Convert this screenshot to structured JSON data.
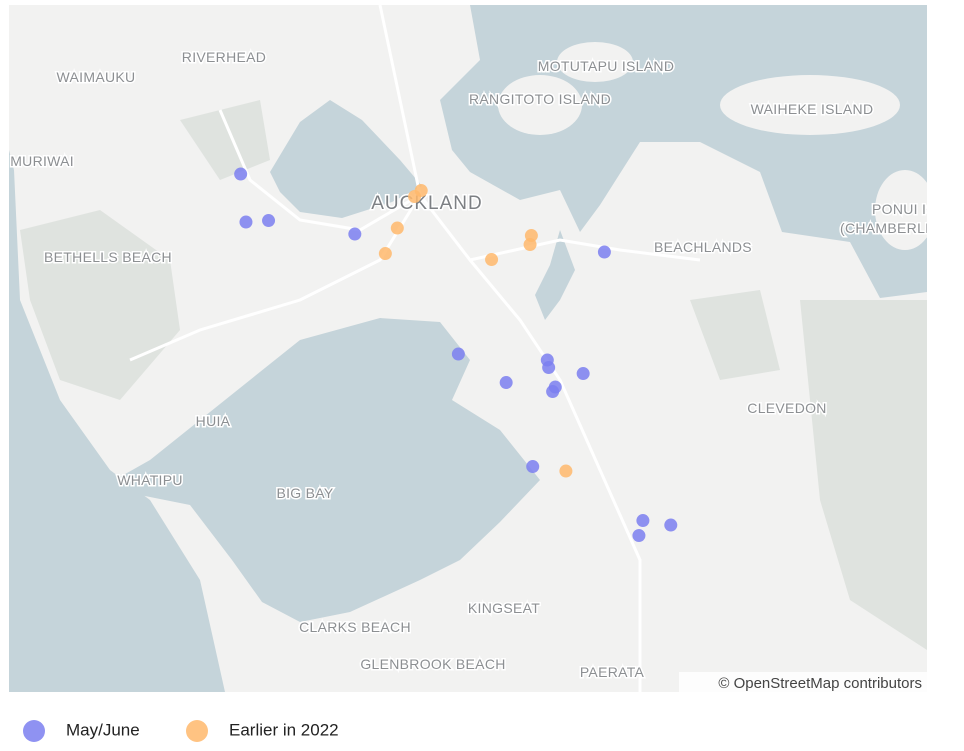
{
  "map": {
    "bounds": {
      "west": 174.4515,
      "east": 175.143,
      "north": -36.7213,
      "south": -37.1793
    },
    "place_labels": [
      "WAIMAUKU",
      "RIVERHEAD",
      "MURIWAI",
      "BETHELLS BEACH",
      "AUCKLAND",
      "MOTUTAPU ISLAND",
      "RANGITOTO ISLAND",
      "WAIHEKE ISLAND",
      "BEACHLANDS",
      "PONUI ISLAND",
      "(CHAMBERLINS)",
      "HUIA",
      "WHATIPU",
      "BIG BAY",
      "CLEVEDON",
      "KINGSEAT",
      "CLARKS BEACH",
      "GLENBROOK BEACH",
      "PAERATA"
    ],
    "series": [
      {
        "name": "May/June",
        "color": "#7b7ff0",
        "points": [
          {
            "lat": -36.834,
            "lon": 174.626
          },
          {
            "lat": -36.866,
            "lon": 174.63
          },
          {
            "lat": -36.865,
            "lon": 174.647
          },
          {
            "lat": -36.874,
            "lon": 174.712
          },
          {
            "lat": -36.886,
            "lon": 174.9
          },
          {
            "lat": -36.954,
            "lon": 174.79
          },
          {
            "lat": -36.958,
            "lon": 174.857
          },
          {
            "lat": -36.963,
            "lon": 174.858
          },
          {
            "lat": -36.967,
            "lon": 174.884
          },
          {
            "lat": -36.973,
            "lon": 174.826
          },
          {
            "lat": -36.976,
            "lon": 174.863
          },
          {
            "lat": -36.979,
            "lon": 174.861
          },
          {
            "lat": -37.029,
            "lon": 174.846
          },
          {
            "lat": -37.065,
            "lon": 174.929
          },
          {
            "lat": -37.068,
            "lon": 174.95
          },
          {
            "lat": -37.075,
            "lon": 174.926
          }
        ]
      },
      {
        "name": "Earlier in 2022",
        "color": "#ffb86c",
        "points": [
          {
            "lat": -36.849,
            "lon": 174.757
          },
          {
            "lat": -36.845,
            "lon": 174.762
          },
          {
            "lat": -36.87,
            "lon": 174.744
          },
          {
            "lat": -36.887,
            "lon": 174.735
          },
          {
            "lat": -36.875,
            "lon": 174.845
          },
          {
            "lat": -36.881,
            "lon": 174.844
          },
          {
            "lat": -36.891,
            "lon": 174.815
          },
          {
            "lat": -37.032,
            "lon": 174.871
          }
        ]
      }
    ],
    "attribution": "© OpenStreetMap contributors"
  }
}
